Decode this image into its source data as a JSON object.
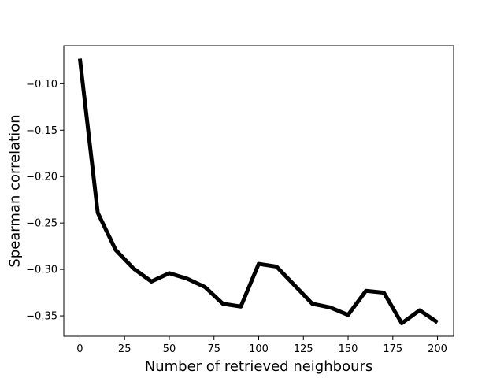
{
  "chart_data": {
    "type": "line",
    "title": "",
    "xlabel": "Number of retrieved neighbours",
    "ylabel": "Spearman correlation",
    "xlim": [
      -9,
      209
    ],
    "ylim": [
      -0.372,
      -0.059
    ],
    "xticks": [
      0,
      25,
      50,
      75,
      100,
      125,
      150,
      175,
      200
    ],
    "xtick_labels": [
      "0",
      "25",
      "50",
      "75",
      "100",
      "125",
      "150",
      "175",
      "200"
    ],
    "yticks": [
      -0.35,
      -0.3,
      -0.25,
      -0.2,
      -0.15,
      -0.1
    ],
    "ytick_labels": [
      "−0.35",
      "−0.30",
      "−0.25",
      "−0.20",
      "−0.15",
      "−0.10"
    ],
    "grid": false,
    "legend": null,
    "series": [
      {
        "color": "#000000",
        "x": [
          0,
          10,
          20,
          30,
          40,
          50,
          60,
          70,
          80,
          90,
          100,
          110,
          120,
          130,
          140,
          150,
          160,
          170,
          180,
          190,
          200
        ],
        "y": [
          -0.073,
          -0.239,
          -0.279,
          -0.299,
          -0.313,
          -0.304,
          -0.31,
          -0.319,
          -0.337,
          -0.34,
          -0.294,
          -0.297,
          -0.317,
          -0.337,
          -0.341,
          -0.349,
          -0.323,
          -0.325,
          -0.358,
          -0.344,
          -0.357
        ]
      }
    ]
  }
}
